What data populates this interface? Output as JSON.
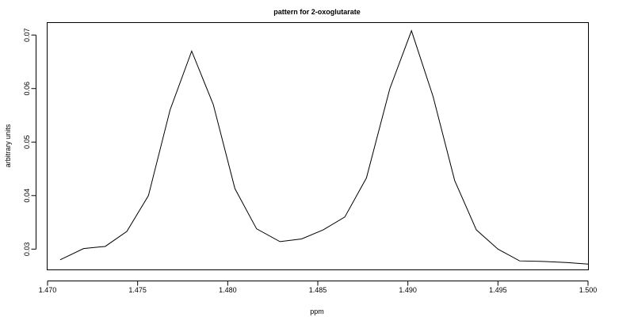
{
  "chart_data": {
    "type": "line",
    "title": "pattern for 2-oxoglutarate",
    "xlabel": "ppm",
    "ylabel": "arbitrary units",
    "xlim": [
      1.47,
      1.5
    ],
    "ylim": [
      0.0262,
      0.0724
    ],
    "x_ticks": [
      1.47,
      1.475,
      1.48,
      1.485,
      1.49,
      1.495,
      1.5
    ],
    "x_tick_labels": [
      "1.470",
      "1.475",
      "1.480",
      "1.485",
      "1.490",
      "1.495",
      "1.500"
    ],
    "y_ticks": [
      0.03,
      0.04,
      0.05,
      0.06,
      0.07
    ],
    "y_tick_labels": [
      "0.03",
      "0.04",
      "0.05",
      "0.06",
      "0.07"
    ],
    "grid": false,
    "series": [
      {
        "x": [
          1.4707,
          1.472,
          1.4732,
          1.4744,
          1.4756,
          1.4768,
          1.478,
          1.4792,
          1.4804,
          1.4816,
          1.4829,
          1.4841,
          1.4853,
          1.4865,
          1.4877,
          1.489,
          1.4902,
          1.4914,
          1.4926,
          1.4938,
          1.495,
          1.4962,
          1.4975,
          1.4988,
          1.5
        ],
        "y": [
          0.028,
          0.0301,
          0.0305,
          0.0333,
          0.04,
          0.056,
          0.067,
          0.057,
          0.0413,
          0.0338,
          0.0314,
          0.0319,
          0.0336,
          0.036,
          0.0433,
          0.06,
          0.0708,
          0.0585,
          0.0428,
          0.0336,
          0.03,
          0.0278,
          0.0277,
          0.0275,
          0.0272
        ]
      }
    ]
  }
}
